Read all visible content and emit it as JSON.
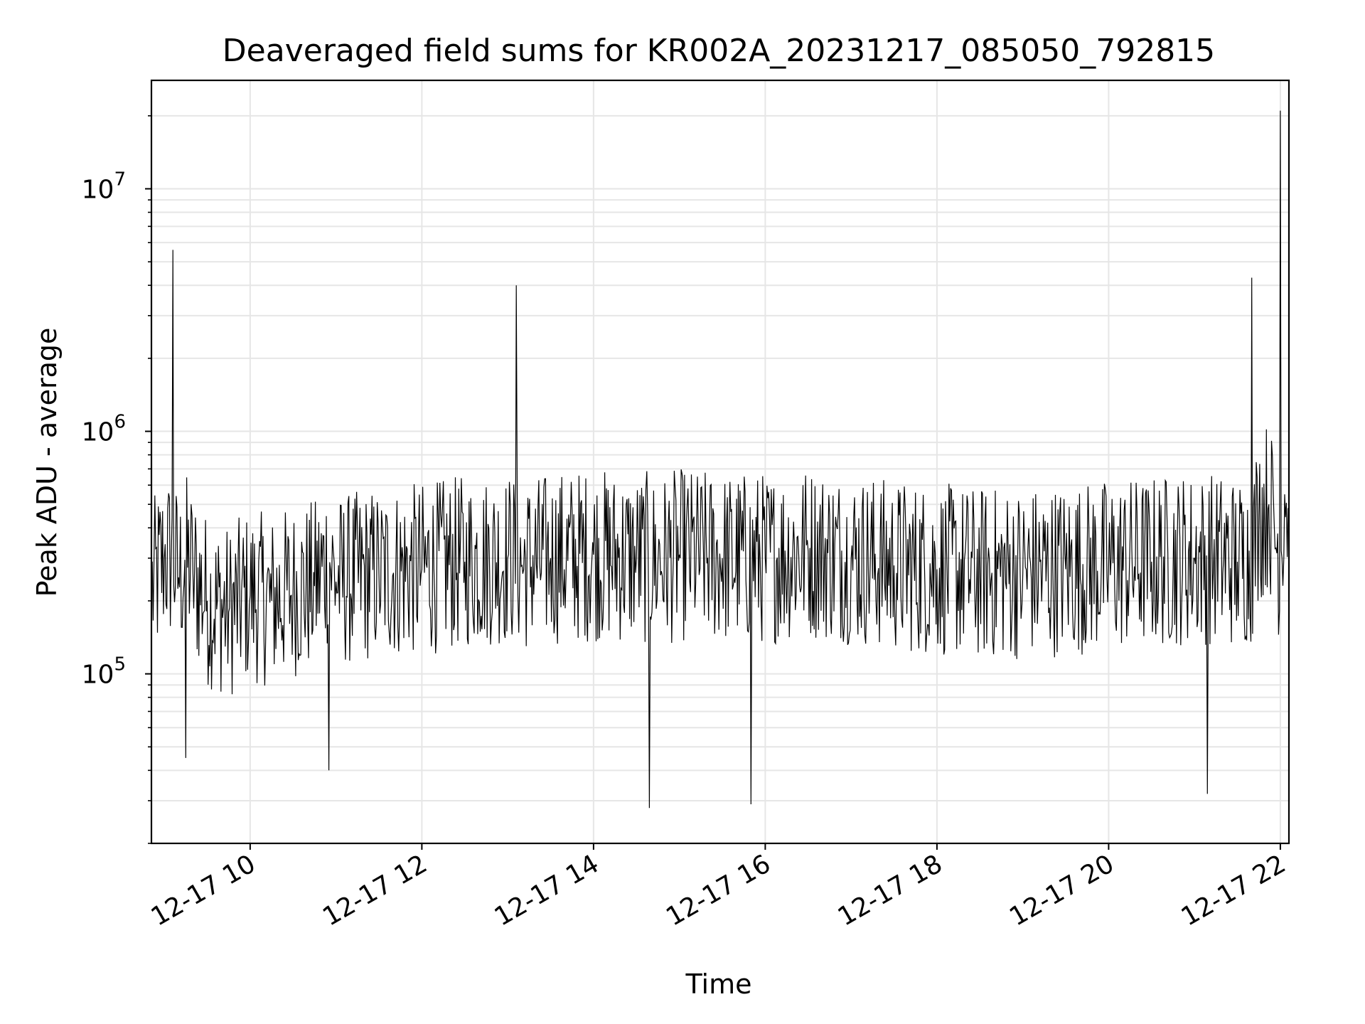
{
  "chart_data": {
    "type": "line",
    "title": "Deaveraged field sums for KR002A_20231217_085050_792815",
    "xlabel": "Time",
    "ylabel": "Peak ADU - average",
    "xlim": [
      "12-17 08:51",
      "12-17 22:06"
    ],
    "ylim": [
      20000,
      28000000
    ],
    "yscale": "log",
    "grid": true,
    "legend": "none",
    "line_color": "#000000",
    "grid_color": "#e6e6e6",
    "x_ticks": [
      {
        "t": "12-17 10:00",
        "label": "12-17 10"
      },
      {
        "t": "12-17 12:00",
        "label": "12-17 12"
      },
      {
        "t": "12-17 14:00",
        "label": "12-17 14"
      },
      {
        "t": "12-17 16:00",
        "label": "12-17 16"
      },
      {
        "t": "12-17 18:00",
        "label": "12-17 18"
      },
      {
        "t": "12-17 20:00",
        "label": "12-17 20"
      },
      {
        "t": "12-17 22:00",
        "label": "12-17 22"
      }
    ],
    "y_ticks": [
      {
        "v": 100000,
        "base": "10",
        "exp": "5"
      },
      {
        "v": 1000000,
        "base": "10",
        "exp": "6"
      },
      {
        "v": 10000000,
        "base": "10",
        "exp": "7"
      }
    ],
    "series": [
      {
        "points": [
          [
            "12-17 08:51",
            220000
          ],
          [
            "12-17 09:00",
            300000
          ],
          [
            "12-17 09:06",
            5600000
          ],
          [
            "12-17 09:10",
            250000
          ],
          [
            "12-17 09:15",
            45000
          ],
          [
            "12-17 09:20",
            260000
          ],
          [
            "12-17 09:30",
            200000
          ],
          [
            "12-17 09:45",
            180000
          ],
          [
            "12-17 10:00",
            210000
          ],
          [
            "12-17 10:15",
            200000
          ],
          [
            "12-17 10:30",
            220000
          ],
          [
            "12-17 10:45",
            230000
          ],
          [
            "12-17 10:55",
            40000
          ],
          [
            "12-17 11:00",
            240000
          ],
          [
            "12-17 11:30",
            260000
          ],
          [
            "12-17 12:00",
            270000
          ],
          [
            "12-17 12:30",
            290000
          ],
          [
            "12-17 13:00",
            300000
          ],
          [
            "12-17 13:06",
            4000000
          ],
          [
            "12-17 13:10",
            280000
          ],
          [
            "12-17 13:30",
            300000
          ],
          [
            "12-17 14:00",
            310000
          ],
          [
            "12-17 14:30",
            300000
          ],
          [
            "12-17 14:39",
            28000
          ],
          [
            "12-17 14:45",
            290000
          ],
          [
            "12-17 15:00",
            310000
          ],
          [
            "12-17 15:30",
            300000
          ],
          [
            "12-17 15:50",
            29000
          ],
          [
            "12-17 16:00",
            300000
          ],
          [
            "12-17 16:30",
            320000
          ],
          [
            "12-17 17:00",
            300000
          ],
          [
            "12-17 17:30",
            280000
          ],
          [
            "12-17 18:00",
            270000
          ],
          [
            "12-17 18:30",
            260000
          ],
          [
            "12-17 19:00",
            260000
          ],
          [
            "12-17 19:30",
            270000
          ],
          [
            "12-17 20:00",
            280000
          ],
          [
            "12-17 20:30",
            290000
          ],
          [
            "12-17 21:00",
            300000
          ],
          [
            "12-17 21:09",
            32000
          ],
          [
            "12-17 21:15",
            300000
          ],
          [
            "12-17 21:30",
            290000
          ],
          [
            "12-17 21:40",
            4300000
          ],
          [
            "12-17 21:45",
            450000
          ],
          [
            "12-17 21:52",
            500000
          ],
          [
            "12-17 22:00",
            21000000
          ],
          [
            "12-17 22:03",
            550000
          ],
          [
            "12-17 22:06",
            480000
          ]
        ]
      }
    ]
  }
}
